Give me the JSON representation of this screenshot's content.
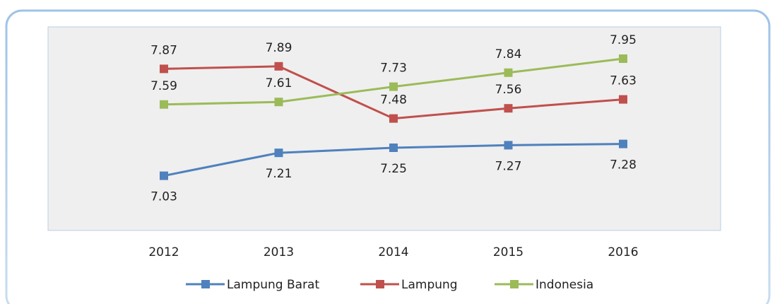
{
  "chart_data": {
    "type": "line",
    "categories": [
      "2012",
      "2013",
      "2014",
      "2015",
      "2016"
    ],
    "series": [
      {
        "name": "Lampung Barat",
        "color": "#4f81bd",
        "values": [
          7.03,
          7.21,
          7.25,
          7.27,
          7.28
        ]
      },
      {
        "name": "Lampung",
        "color": "#c0504d",
        "values": [
          7.87,
          7.89,
          7.48,
          7.56,
          7.63
        ]
      },
      {
        "name": "Indonesia",
        "color": "#9bbb59",
        "values": [
          7.59,
          7.61,
          7.73,
          7.84,
          7.95
        ]
      }
    ],
    "ylim": [
      6.6,
      8.2
    ],
    "legend": "bottom"
  }
}
